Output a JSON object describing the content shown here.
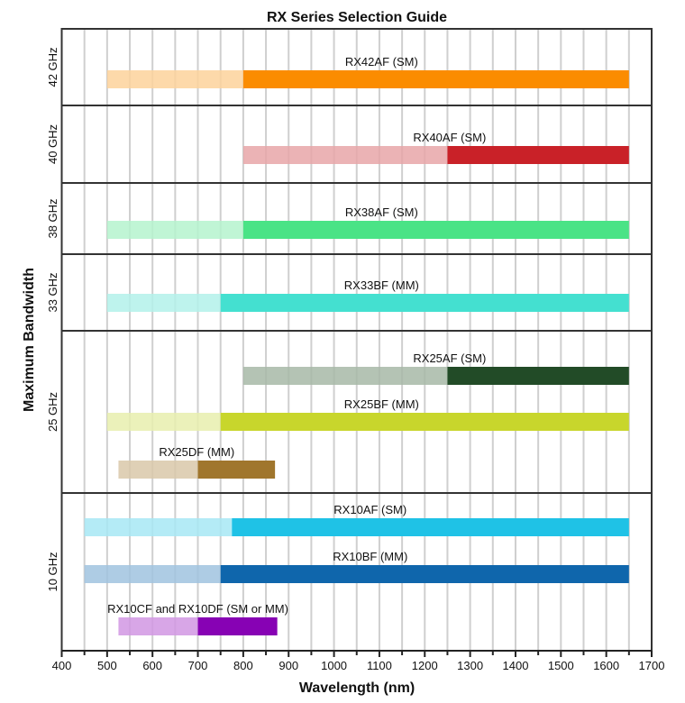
{
  "chart_data": {
    "type": "bar",
    "orientation": "horizontal-range",
    "title": "RX Series Selection Guide",
    "xlabel": "Wavelength (nm)",
    "ylabel": "Maximum Bandwidth",
    "xlim": [
      400,
      1700
    ],
    "xticks": [
      400,
      500,
      600,
      700,
      800,
      900,
      1000,
      1100,
      1200,
      1300,
      1400,
      1500,
      1600,
      1700
    ],
    "minor_step": 50,
    "grid": true,
    "panels": [
      {
        "label": "42 GHz",
        "bars": [
          {
            "name": "RX42AF (SM)",
            "start": 500,
            "transition": 800,
            "end": 1650,
            "light": "#FDD29B",
            "dark": "#FB8C00"
          }
        ]
      },
      {
        "label": "40 GHz",
        "bars": [
          {
            "name": "RX40AF (SM)",
            "start": 800,
            "transition": 1250,
            "end": 1650,
            "light": "#E8A6A8",
            "dark": "#C92128"
          }
        ]
      },
      {
        "label": "38 GHz",
        "bars": [
          {
            "name": "RX38AF (SM)",
            "start": 500,
            "transition": 800,
            "end": 1650,
            "light": "#B5F3CE",
            "dark": "#4AE386"
          }
        ]
      },
      {
        "label": "33 GHz",
        "bars": [
          {
            "name": "RX33BF (MM)",
            "start": 500,
            "transition": 750,
            "end": 1650,
            "light": "#B3F1EA",
            "dark": "#44E0D0"
          }
        ]
      },
      {
        "label": "25 GHz",
        "bars": [
          {
            "name": "RX25AF (SM)",
            "start": 800,
            "transition": 1250,
            "end": 1650,
            "light": "#A7B8A7",
            "dark": "#224B27"
          },
          {
            "name": "RX25BF (MM)",
            "start": 500,
            "transition": 750,
            "end": 1650,
            "light": "#E7EEAE",
            "dark": "#C8D62C"
          },
          {
            "name": "RX25DF (MM)",
            "start": 525,
            "transition": 700,
            "end": 870,
            "light": "#D9C8A9",
            "dark": "#A0762D"
          }
        ]
      },
      {
        "label": "10 GHz",
        "bars": [
          {
            "name": "RX10AF (SM)",
            "start": 450,
            "transition": 775,
            "end": 1650,
            "light": "#A7E8F5",
            "dark": "#1FC2E6"
          },
          {
            "name": "RX10BF (MM)",
            "start": 450,
            "transition": 750,
            "end": 1650,
            "light": "#A0C3DF",
            "dark": "#0F66AC"
          },
          {
            "name": "RX10CF and RX10DF (SM or MM)",
            "start": 525,
            "transition": 700,
            "end": 875,
            "light": "#D197E3",
            "dark": "#8702B4"
          }
        ]
      }
    ]
  }
}
